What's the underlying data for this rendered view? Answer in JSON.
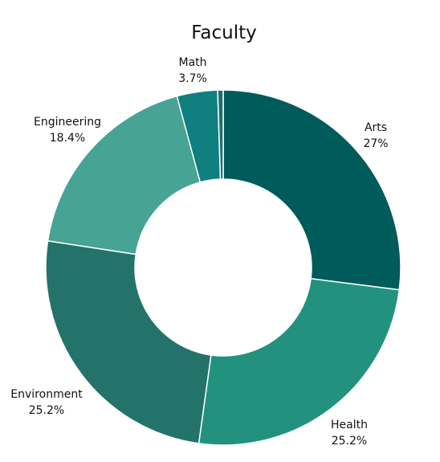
{
  "chart_data": {
    "type": "pie",
    "variant": "donut",
    "title": "Faculty",
    "legend": "none",
    "slices": [
      {
        "label": "Arts",
        "value": 27,
        "value_label": "27%",
        "color": "#005b5b"
      },
      {
        "label": "Health",
        "value": 25.2,
        "value_label": "25.2%",
        "color": "#22927f"
      },
      {
        "label": "Environment",
        "value": 25.2,
        "value_label": "25.2%",
        "color": "#23736a"
      },
      {
        "label": "Engineering",
        "value": 18.4,
        "value_label": "18.4%",
        "color": "#47a393"
      },
      {
        "label": "Math",
        "value": 3.7,
        "value_label": "3.7%",
        "color": "#107f80"
      },
      {
        "label": "",
        "value": 0.5,
        "value_label": "",
        "color": "#1f6f6f"
      }
    ]
  }
}
